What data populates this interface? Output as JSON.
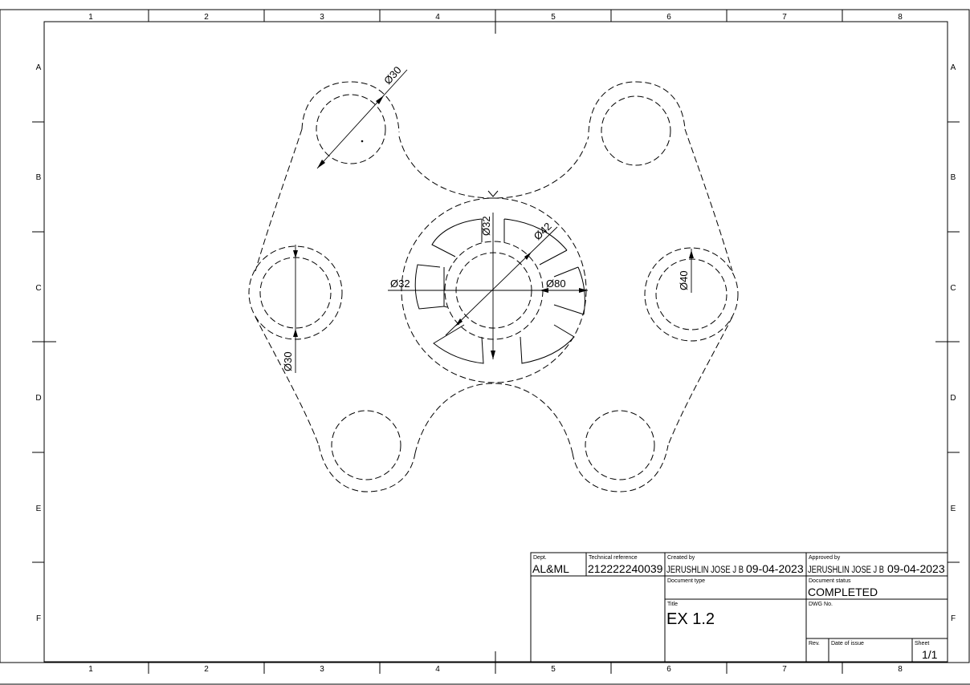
{
  "frame": {
    "columns": [
      "1",
      "2",
      "3",
      "4",
      "5",
      "6",
      "7",
      "8"
    ],
    "rows": [
      "A",
      "B",
      "C",
      "D",
      "E",
      "F"
    ]
  },
  "dimensions": {
    "top_left_hole": "Ø30",
    "left_hole": "Ø30",
    "center_inner": "Ø32",
    "center_left": "Ø32",
    "center_outer": "Ø42",
    "center_overall": "Ø80",
    "right_hole": "Ø40"
  },
  "title_block": {
    "dept_label": "Dept.",
    "dept_value": "AL&ML",
    "techref_label": "Technical reference",
    "techref_value": "212222240039",
    "created_label": "Created by",
    "created_name": "JERUSHLIN JOSE J B",
    "created_date": "09-04-2023",
    "approved_label": "Approved by",
    "approved_name": "JERUSHLIN JOSE J B",
    "approved_date": "09-04-2023",
    "doctype_label": "Document type",
    "docstatus_label": "Document status",
    "docstatus_value": "COMPLETED",
    "title_label": "Title",
    "title_value": "EX 1.2",
    "dwg_label": "DWG No.",
    "rev_label": "Rev.",
    "issue_label": "Date of issue",
    "sheet_label": "Sheet",
    "sheet_value": "1/1"
  }
}
